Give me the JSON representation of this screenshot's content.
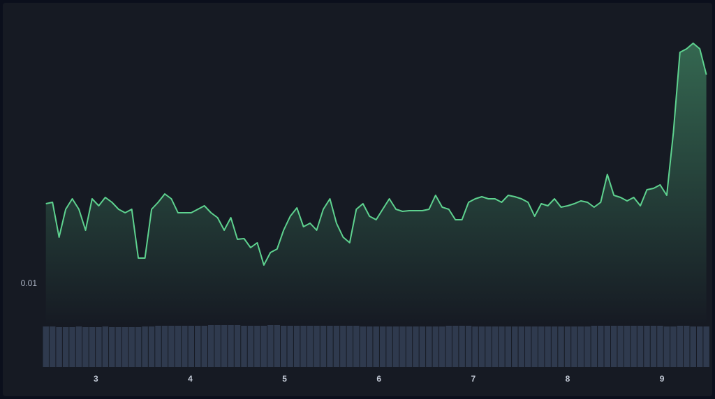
{
  "chart_data": {
    "type": "line",
    "x": [
      2.47,
      2.54,
      2.61,
      2.68,
      2.75,
      2.82,
      2.89,
      2.96,
      3.03,
      3.1,
      3.17,
      3.24,
      3.31,
      3.38,
      3.45,
      3.52,
      3.59,
      3.66,
      3.73,
      3.8,
      3.87,
      3.94,
      4.01,
      4.08,
      4.15,
      4.22,
      4.29,
      4.36,
      4.43,
      4.5,
      4.57,
      4.64,
      4.71,
      4.78,
      4.85,
      4.92,
      4.99,
      5.06,
      5.13,
      5.2,
      5.27,
      5.34,
      5.41,
      5.48,
      5.55,
      5.62,
      5.69,
      5.76,
      5.83,
      5.9,
      5.97,
      6.04,
      6.11,
      6.18,
      6.25,
      6.32,
      6.39,
      6.46,
      6.53,
      6.6,
      6.67,
      6.74,
      6.81,
      6.88,
      6.95,
      7.02,
      7.09,
      7.16,
      7.23,
      7.3,
      7.37,
      7.44,
      7.51,
      7.58,
      7.65,
      7.72,
      7.79,
      7.86,
      7.93,
      8,
      8.07,
      8.14,
      8.21,
      8.28,
      8.35,
      8.42,
      8.49,
      8.56,
      8.63,
      8.7,
      8.77,
      8.84,
      8.91,
      8.98,
      9.05,
      9.12,
      9.19,
      9.26,
      9.33,
      9.4,
      9.47
    ],
    "values": [
      0.01115,
      0.01117,
      0.01067,
      0.01107,
      0.01122,
      0.01107,
      0.01077,
      0.01122,
      0.01112,
      0.01124,
      0.01117,
      0.01107,
      0.01102,
      0.01107,
      0.01037,
      0.01037,
      0.01107,
      0.01117,
      0.01129,
      0.01122,
      0.01102,
      0.01102,
      0.01102,
      0.01107,
      0.01112,
      0.01102,
      0.01095,
      0.01077,
      0.01095,
      0.01064,
      0.01065,
      0.01052,
      0.01059,
      0.01027,
      0.01045,
      0.0105,
      0.01077,
      0.01097,
      0.01109,
      0.01082,
      0.01087,
      0.01077,
      0.01107,
      0.01122,
      0.01087,
      0.01067,
      0.01059,
      0.01107,
      0.01115,
      0.01097,
      0.01092,
      0.01107,
      0.01122,
      0.01107,
      0.01104,
      0.01105,
      0.01105,
      0.01105,
      0.01107,
      0.01127,
      0.0111,
      0.01107,
      0.01092,
      0.01092,
      0.01117,
      0.01122,
      0.01125,
      0.01122,
      0.01122,
      0.01117,
      0.01127,
      0.01125,
      0.01122,
      0.01117,
      0.01097,
      0.01115,
      0.01112,
      0.01122,
      0.0111,
      0.01112,
      0.01115,
      0.01119,
      0.01117,
      0.0111,
      0.01117,
      0.01157,
      0.01127,
      0.01124,
      0.01119,
      0.01124,
      0.01112,
      0.01135,
      0.01137,
      0.01142,
      0.01127,
      0.01217,
      0.01332,
      0.01337,
      0.01345,
      0.01337,
      0.013
    ],
    "color": "#5ed28f",
    "xlim": [
      2.45,
      9.48
    ],
    "xticks": [
      3,
      4,
      5,
      6,
      7,
      8,
      9
    ],
    "ylim": [
      0.0088,
      0.0139
    ],
    "yticks": [
      0.01
    ],
    "volume": {
      "color": "#2f3a4e",
      "ylim": [
        0,
        62
      ],
      "values": [
        58,
        58,
        57,
        57,
        57,
        58,
        57,
        57,
        57,
        58,
        57,
        57,
        57,
        57,
        57,
        58,
        58,
        59,
        59,
        59,
        59,
        59,
        59,
        59,
        59,
        60,
        60,
        60,
        60,
        60,
        59,
        59,
        59,
        59,
        60,
        60,
        59,
        59,
        59,
        59,
        59,
        59,
        59,
        59,
        59,
        59,
        59,
        59,
        58,
        58,
        58,
        58,
        58,
        58,
        58,
        58,
        58,
        58,
        58,
        58,
        58,
        59,
        59,
        59,
        59,
        58,
        58,
        58,
        58,
        58,
        58,
        58,
        58,
        58,
        58,
        58,
        58,
        58,
        58,
        58,
        58,
        58,
        58,
        59,
        59,
        59,
        59,
        59,
        59,
        59,
        59,
        59,
        59,
        59,
        58,
        58,
        59,
        59,
        58,
        58,
        58
      ]
    }
  }
}
